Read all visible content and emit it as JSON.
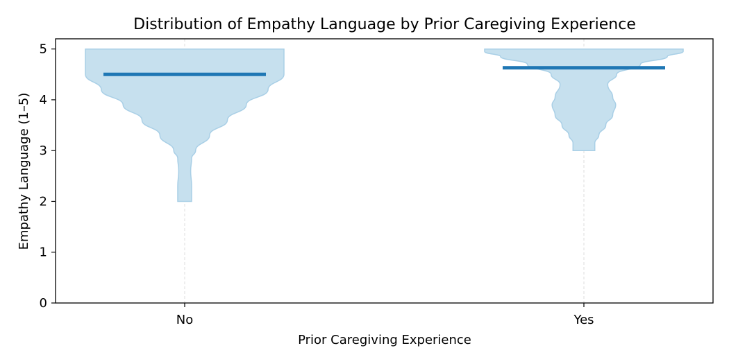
{
  "chart_data": {
    "type": "violin",
    "title": "Distribution of Empathy Language by Prior Caregiving Experience",
    "xlabel": "Prior Caregiving Experience",
    "ylabel": "Empathy Language (1–5)",
    "categories": [
      "No",
      "Yes"
    ],
    "ylim": [
      0,
      5.2
    ],
    "yticks": [
      0,
      1,
      2,
      3,
      4,
      5
    ],
    "grid": "x-dashed",
    "colors": {
      "fill": "#c6e0ee",
      "edge": "#a9cfe6",
      "median": "#1f77b4"
    },
    "series": [
      {
        "category": "No",
        "median": 4.5,
        "min": 2,
        "max": 5,
        "density_profile": [
          [
            2.0,
            0.07
          ],
          [
            2.3,
            0.07
          ],
          [
            2.6,
            0.06
          ],
          [
            2.85,
            0.07
          ],
          [
            3.0,
            0.11
          ],
          [
            3.3,
            0.25
          ],
          [
            3.6,
            0.43
          ],
          [
            3.9,
            0.62
          ],
          [
            4.2,
            0.84
          ],
          [
            4.5,
            1.0
          ],
          [
            4.8,
            1.0
          ],
          [
            4.95,
            1.0
          ],
          [
            5.0,
            1.0
          ]
        ]
      },
      {
        "category": "Yes",
        "median": 4.63,
        "min": 3,
        "max": 5,
        "density_profile": [
          [
            3.0,
            0.11
          ],
          [
            3.15,
            0.11
          ],
          [
            3.3,
            0.15
          ],
          [
            3.5,
            0.22
          ],
          [
            3.7,
            0.29
          ],
          [
            3.9,
            0.32
          ],
          [
            4.05,
            0.29
          ],
          [
            4.3,
            0.24
          ],
          [
            4.5,
            0.33
          ],
          [
            4.7,
            0.57
          ],
          [
            4.85,
            0.84
          ],
          [
            4.95,
            1.0
          ],
          [
            5.0,
            1.0
          ]
        ]
      }
    ]
  }
}
